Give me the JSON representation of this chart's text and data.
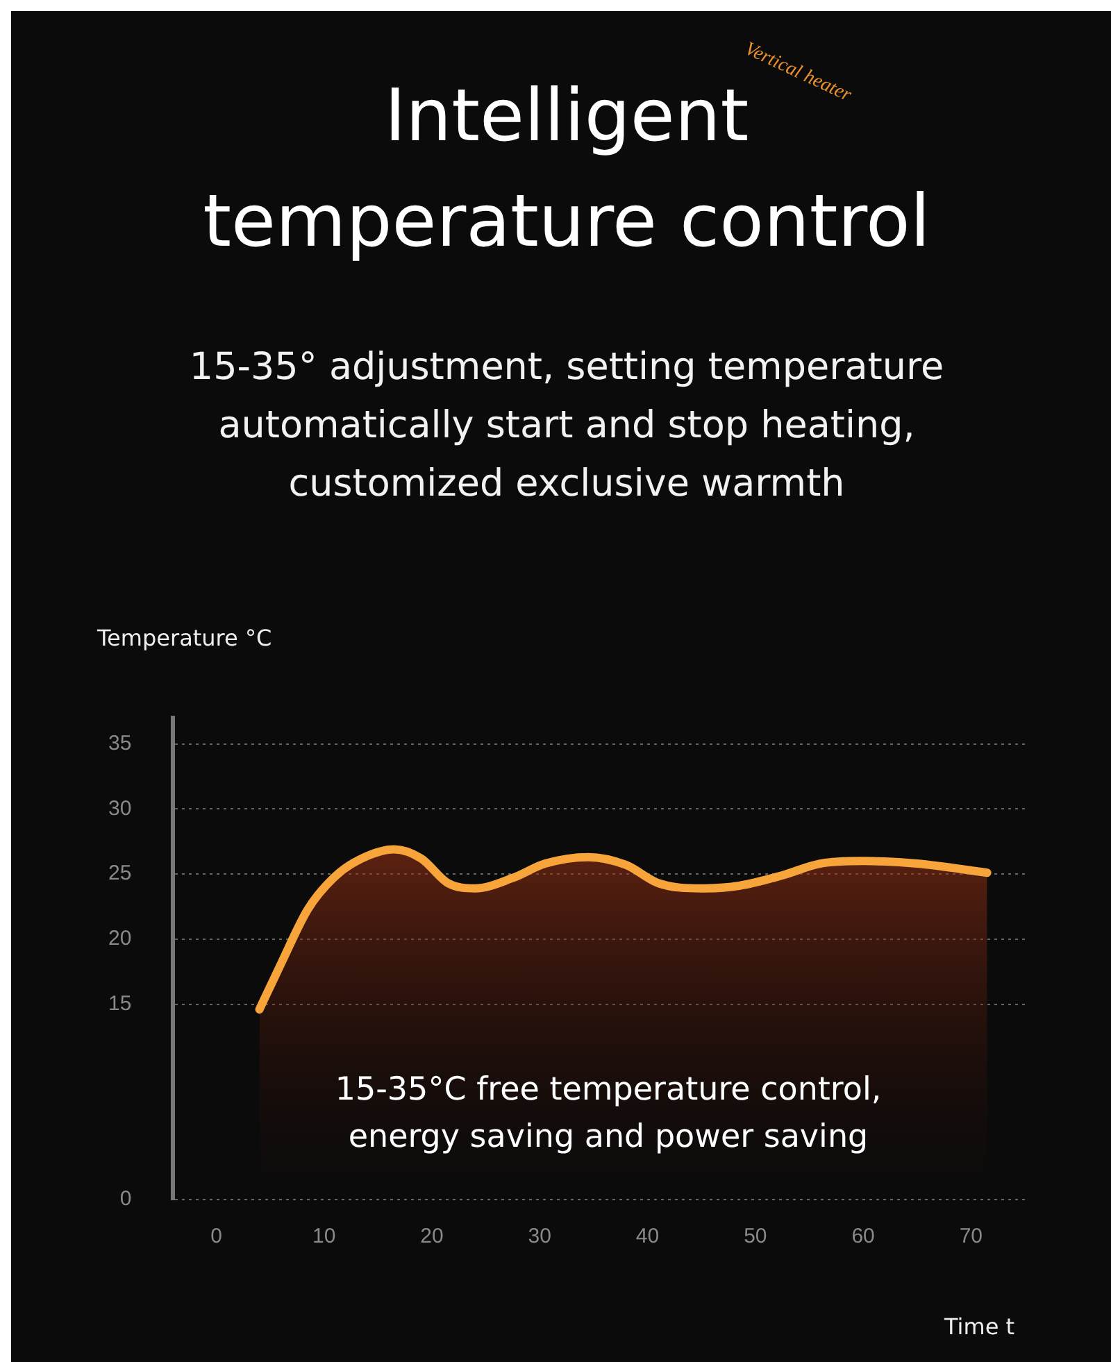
{
  "chart_data": {
    "type": "area",
    "title": "Intelligent temperature control",
    "subtitle": "15-35° adjustment, setting temperature automatically start and stop heating, customized exclusive warmth",
    "xlabel": "Time t",
    "ylabel": "Temperature °C",
    "annotations": [
      "Vertical heater",
      "15-35°C free temperature control, energy saving and power saving"
    ],
    "series": [
      {
        "color": "#f7a43a",
        "x": [
          4,
          6,
          8.5,
          11,
          13.5,
          16.5,
          19,
          21.5,
          24,
          27.5,
          30.5,
          34.5,
          38,
          41,
          45,
          48.5,
          52.5,
          56,
          60,
          65,
          71.5
        ],
        "values": [
          14.6,
          18.1,
          22.3,
          24.8,
          26.2,
          26.9,
          26.2,
          24.3,
          23.9,
          24.7,
          25.8,
          26.3,
          25.7,
          24.3,
          23.9,
          24.1,
          24.9,
          25.8,
          26,
          25.8,
          25.1
        ]
      }
    ],
    "xlim": [
      -4,
      75
    ],
    "xticks": [
      0,
      10,
      20,
      30,
      40,
      50,
      60,
      70
    ],
    "ylim": [
      0,
      37
    ],
    "yticks": [
      0,
      15,
      20,
      25,
      30,
      35
    ],
    "grid": "y",
    "legend": false,
    "marker": "none",
    "line_style": "solid"
  }
}
